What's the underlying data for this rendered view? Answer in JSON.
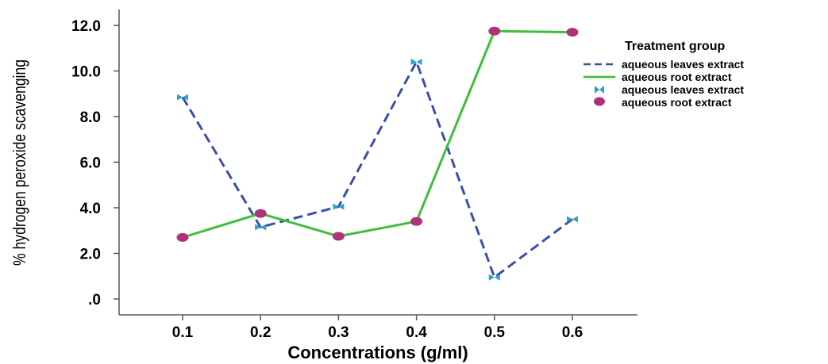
{
  "chart_data": {
    "type": "line",
    "xlabel": "Concentrations (g/ml)",
    "ylabel": "% hydrogen peroxide scavenging",
    "categories": [
      "0.1",
      "0.2",
      "0.3",
      "0.4",
      "0.5",
      "0.6"
    ],
    "yticks": [
      ".0",
      "2.0",
      "4.0",
      "6.0",
      "8.0",
      "10.0",
      "12.0"
    ],
    "ylim": [
      0,
      12.7
    ],
    "grid": false,
    "legend_position": "top-right",
    "legend": {
      "title": "Treatment group",
      "entries": [
        "aqueous leaves extract",
        "aqueous root extract",
        "aqueous leaves extract",
        "aqueous root extract"
      ]
    },
    "series": [
      {
        "name": "aqueous leaves extract",
        "line_style": "dashed",
        "marker": "bowtie",
        "color": "#3b4fa8",
        "marker_color": "#2aa3c7",
        "values": [
          8.85,
          3.15,
          4.05,
          10.4,
          0.95,
          3.5
        ]
      },
      {
        "name": "aqueous root extract",
        "line_style": "solid",
        "marker": "circle",
        "color": "#3cbf3c",
        "marker_color": "#b0307a",
        "values": [
          2.7,
          3.75,
          2.75,
          3.4,
          11.75,
          11.7
        ]
      }
    ]
  }
}
